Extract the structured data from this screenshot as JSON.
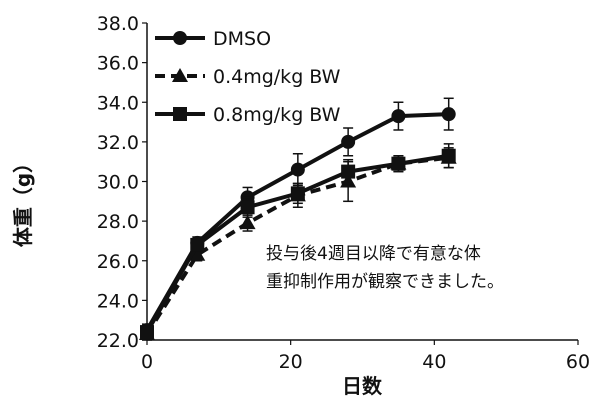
{
  "chart_data": {
    "type": "line",
    "xlabel": "日数",
    "ylabel": "体重（g）",
    "xlim": [
      0,
      60
    ],
    "ylim": [
      22.0,
      38.0
    ],
    "x_ticks": [
      "0",
      "20",
      "40",
      "60"
    ],
    "y_ticks": [
      "22.0",
      "24.0",
      "26.0",
      "28.0",
      "30.0",
      "32.0",
      "34.0",
      "36.0",
      "38.0"
    ],
    "grid": false,
    "legend_position": "top-left",
    "annotation": [
      "投与後4週目以降で有意な体",
      "重抑制作用が観察できました。"
    ],
    "series": [
      {
        "name": "DMSO",
        "marker": "circle",
        "line": "solid",
        "x": [
          0,
          7,
          14,
          21,
          28,
          35,
          42
        ],
        "y": [
          22.5,
          26.9,
          29.2,
          30.6,
          32.0,
          33.3,
          33.4
        ],
        "err": [
          0.3,
          0.3,
          0.5,
          0.8,
          0.7,
          0.7,
          0.8
        ]
      },
      {
        "name": "0.4mg/kg BW",
        "marker": "triangle",
        "line": "dashed",
        "x": [
          0,
          7,
          14,
          21,
          28,
          35,
          42
        ],
        "y": [
          22.3,
          26.3,
          27.9,
          29.3,
          30.0,
          30.9,
          31.2
        ],
        "err": [
          0.3,
          0.3,
          0.4,
          0.6,
          1.0,
          0.4,
          0.5
        ]
      },
      {
        "name": "0.8mg/kg BW",
        "marker": "square",
        "line": "solid",
        "x": [
          0,
          7,
          14,
          21,
          28,
          35,
          42
        ],
        "y": [
          22.4,
          26.8,
          28.7,
          29.4,
          30.5,
          30.9,
          31.3
        ],
        "err": [
          0.3,
          0.3,
          0.5,
          0.5,
          0.6,
          0.4,
          0.6
        ]
      }
    ]
  }
}
